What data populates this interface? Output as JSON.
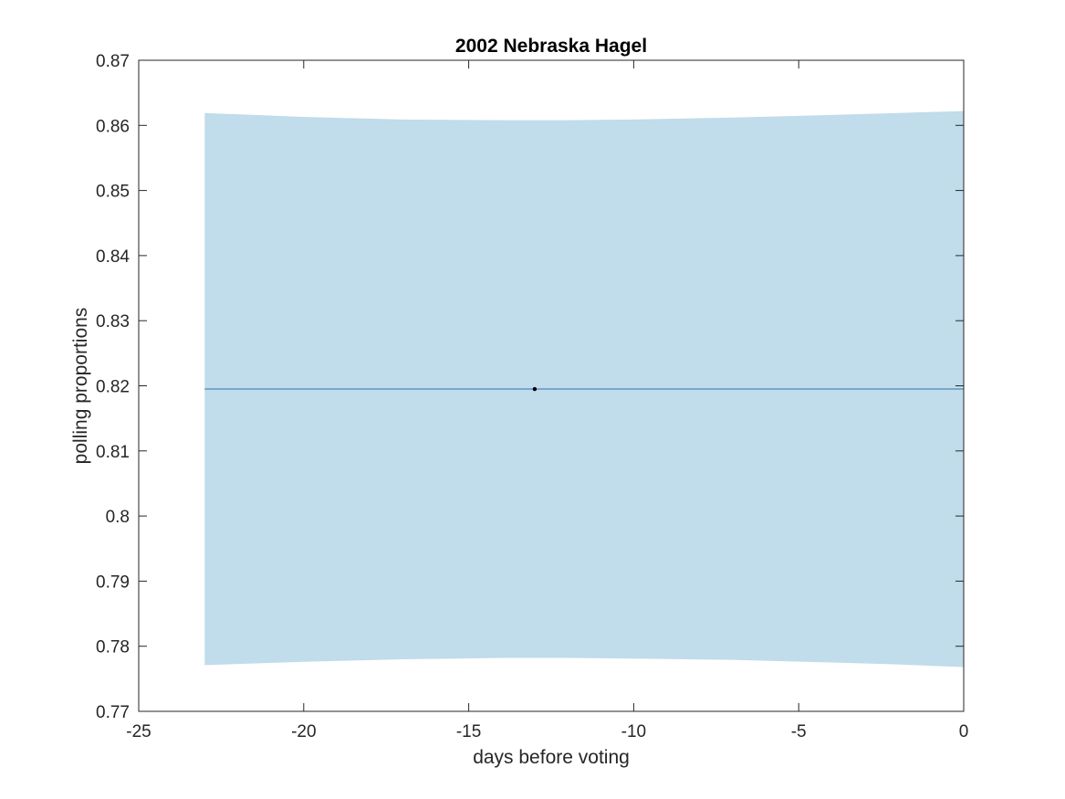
{
  "chart_data": {
    "type": "line",
    "title": "2002 Nebraska Hagel",
    "xlabel": "days before voting",
    "ylabel": "polling proportions",
    "xlim": [
      -25,
      0
    ],
    "ylim": [
      0.77,
      0.87
    ],
    "xticks": [
      -25,
      -20,
      -15,
      -10,
      -5,
      0
    ],
    "xtick_labels": [
      "-25",
      "-20",
      "-15",
      "-10",
      "-5",
      "0"
    ],
    "yticks": [
      0.77,
      0.78,
      0.79,
      0.8,
      0.81,
      0.82,
      0.83,
      0.84,
      0.85,
      0.86,
      0.87
    ],
    "ytick_labels": [
      "0.77",
      "0.78",
      "0.79",
      "0.8",
      "0.81",
      "0.82",
      "0.83",
      "0.84",
      "0.85",
      "0.86",
      "0.87"
    ],
    "grid": false,
    "series": [
      {
        "kind": "band",
        "color": "#c1dcea",
        "x": [
          -23,
          -20,
          -17,
          -14,
          -12,
          -10,
          -7,
          -4,
          -2,
          0
        ],
        "upper": [
          0.8619,
          0.8613,
          0.8609,
          0.8608,
          0.8608,
          0.8609,
          0.8612,
          0.8616,
          0.8619,
          0.8622
        ],
        "lower": [
          0.7771,
          0.7776,
          0.778,
          0.7782,
          0.7782,
          0.7781,
          0.7779,
          0.7775,
          0.7772,
          0.7768
        ]
      },
      {
        "kind": "line",
        "color": "#2f6fae",
        "x": [
          -23,
          0
        ],
        "y": [
          0.8195,
          0.8195
        ]
      },
      {
        "kind": "points",
        "color": "#000000",
        "x": [
          -13
        ],
        "y": [
          0.8195
        ]
      }
    ]
  }
}
